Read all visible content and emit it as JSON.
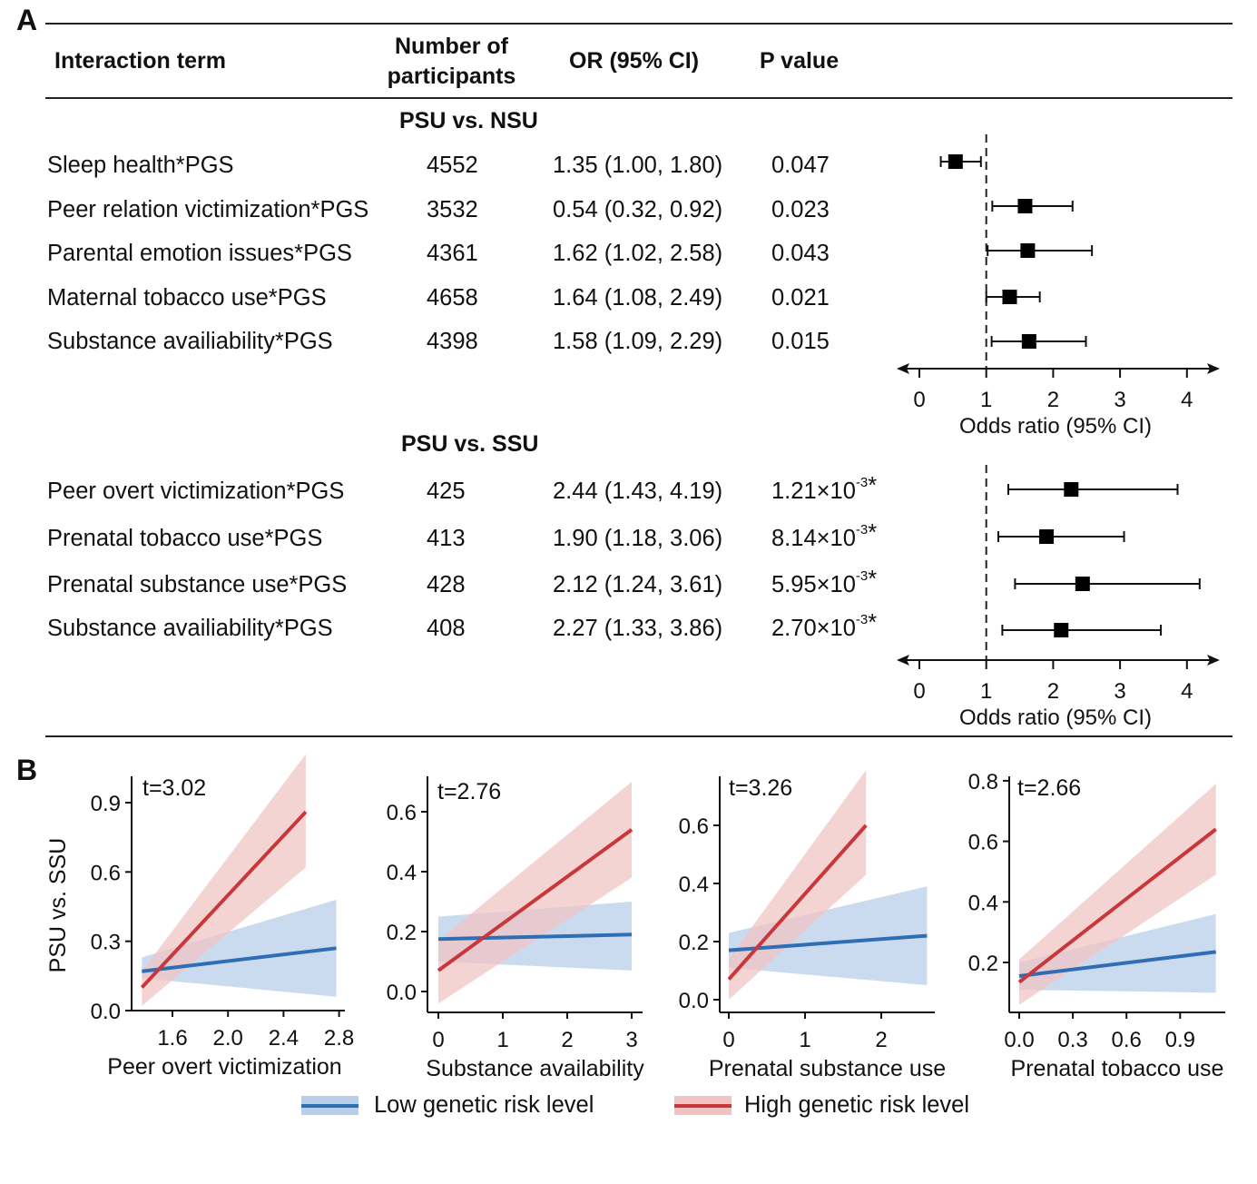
{
  "panel_a": {
    "letter": "A",
    "headers": {
      "term": "Interaction term",
      "n_line1": "Number of",
      "n_line2": "participants",
      "or": "OR (95% CI)",
      "p": "P value"
    },
    "sections": [
      {
        "title": "PSU vs. NSU",
        "rows": [
          {
            "term": "Sleep health*PGS",
            "n": "4552",
            "or_text": "1.35 (1.00, 1.80)",
            "p_base": "0.047",
            "p_exp": "",
            "p_mark": ""
          },
          {
            "term": "Peer relation victimization*PGS",
            "n": "3532",
            "or_text": "0.54 (0.32, 0.92)",
            "p_base": "0.023",
            "p_exp": "",
            "p_mark": ""
          },
          {
            "term": "Parental emotion issues*PGS",
            "n": "4361",
            "or_text": "1.62 (1.02, 2.58)",
            "p_base": "0.043",
            "p_exp": "",
            "p_mark": ""
          },
          {
            "term": "Maternal tobacco use*PGS",
            "n": "4658",
            "or_text": "1.64 (1.08, 2.49)",
            "p_base": "0.021",
            "p_exp": "",
            "p_mark": ""
          },
          {
            "term": "Substance availiability*PGS",
            "n": "4398",
            "or_text": "1.58 (1.09, 2.29)",
            "p_base": "0.015",
            "p_exp": "",
            "p_mark": ""
          }
        ]
      },
      {
        "title": "PSU vs. SSU",
        "rows": [
          {
            "term": "Peer overt victimization*PGS",
            "n": "425",
            "or_text": "2.44 (1.43, 4.19)",
            "p_base": "1.21×10",
            "p_exp": "-3",
            "p_mark": "*"
          },
          {
            "term": "Prenatal  tobacco use*PGS",
            "n": "413",
            "or_text": "1.90 (1.18, 3.06)",
            "p_base": "8.14×10",
            "p_exp": "-3",
            "p_mark": "*"
          },
          {
            "term": "Prenatal  substance use*PGS",
            "n": "428",
            "or_text": "2.12 (1.24, 3.61)",
            "p_base": "5.95×10",
            "p_exp": "-3",
            "p_mark": "*"
          },
          {
            "term": "Substance availiability*PGS",
            "n": "408",
            "or_text": "2.27 (1.33, 3.86)",
            "p_base": "2.70×10",
            "p_exp": "-3",
            "p_mark": "*"
          }
        ]
      }
    ]
  },
  "panel_b": {
    "letter": "B"
  },
  "chart_data": [
    {
      "type": "forest",
      "title": "PSU vs. NSU",
      "xlabel": "Odds ratio (95% CI)",
      "xticks": [
        "0",
        "1",
        "2",
        "3",
        "4"
      ],
      "xlim": [
        0,
        4.45
      ],
      "reference_line": 1,
      "points": [
        {
          "or": 0.54,
          "lo": 0.32,
          "hi": 0.92
        },
        {
          "or": 1.58,
          "lo": 1.09,
          "hi": 2.29
        },
        {
          "or": 1.62,
          "lo": 1.02,
          "hi": 2.58
        },
        {
          "or": 1.35,
          "lo": 1.0,
          "hi": 1.8
        },
        {
          "or": 1.64,
          "lo": 1.08,
          "hi": 2.49
        }
      ]
    },
    {
      "type": "forest",
      "title": "PSU vs. SSU",
      "xlabel": "Odds ratio (95% CI)",
      "xticks": [
        "0",
        "1",
        "2",
        "3",
        "4"
      ],
      "xlim": [
        0,
        4.45
      ],
      "reference_line": 1,
      "points": [
        {
          "or": 2.27,
          "lo": 1.33,
          "hi": 3.86
        },
        {
          "or": 1.9,
          "lo": 1.18,
          "hi": 3.06
        },
        {
          "or": 2.44,
          "lo": 1.43,
          "hi": 4.19
        },
        {
          "or": 2.12,
          "lo": 1.24,
          "hi": 3.61
        }
      ]
    },
    {
      "type": "line",
      "annotation": "t=3.02",
      "xlabel": "Peer overt victimization",
      "ylabel": "PSU vs. SSU",
      "xticks": [
        1.6,
        2.0,
        2.4,
        2.8
      ],
      "xtick_labels": [
        "1.6",
        "2.0",
        "2.4",
        "2.8"
      ],
      "yticks": [
        0.0,
        0.3,
        0.6,
        0.9
      ],
      "ytick_labels": [
        "0.0",
        "0.3",
        "0.6",
        "0.9"
      ],
      "xlim": [
        1.32,
        2.82
      ],
      "ylim": [
        0.0,
        1.13
      ],
      "series": [
        {
          "name": "Low genetic risk level",
          "x": [
            1.38,
            2.78
          ],
          "y": [
            0.17,
            0.27
          ],
          "lower": [
            0.14,
            0.06
          ],
          "upper": [
            0.23,
            0.48
          ]
        },
        {
          "name": "High genetic risk level",
          "x": [
            1.38,
            2.56
          ],
          "y": [
            0.1,
            0.86
          ],
          "lower": [
            0.02,
            0.62
          ],
          "upper": [
            0.17,
            1.11
          ]
        }
      ]
    },
    {
      "type": "line",
      "annotation": "t=2.76",
      "xlabel": "Substance availability",
      "ylabel": "",
      "xticks": [
        0,
        1,
        2,
        3
      ],
      "xtick_labels": [
        "0",
        "1",
        "2",
        "3"
      ],
      "yticks": [
        0.0,
        0.2,
        0.4,
        0.6
      ],
      "ytick_labels": [
        "0.0",
        "0.2",
        "0.4",
        "0.6"
      ],
      "xlim": [
        -0.15,
        3.2
      ],
      "ylim": [
        -0.07,
        0.72
      ],
      "series": [
        {
          "name": "Low genetic risk level",
          "x": [
            0,
            3
          ],
          "y": [
            0.175,
            0.19
          ],
          "lower": [
            0.1,
            0.07
          ],
          "upper": [
            0.25,
            0.3
          ]
        },
        {
          "name": "High genetic risk level",
          "x": [
            0,
            3
          ],
          "y": [
            0.07,
            0.54
          ],
          "lower": [
            -0.04,
            0.38
          ],
          "upper": [
            0.17,
            0.7
          ]
        }
      ]
    },
    {
      "type": "line",
      "annotation": "t=3.26",
      "xlabel": "Prenatal substance use",
      "ylabel": "",
      "xticks": [
        0,
        1,
        2
      ],
      "xtick_labels": [
        "0",
        "1",
        "2"
      ],
      "yticks": [
        0.0,
        0.2,
        0.4,
        0.6
      ],
      "ytick_labels": [
        "0.0",
        "0.2",
        "0.4",
        "0.6"
      ],
      "xlim": [
        -0.12,
        2.68
      ],
      "ylim": [
        -0.04,
        0.77
      ],
      "series": [
        {
          "name": "Low genetic risk level",
          "x": [
            0,
            2.6
          ],
          "y": [
            0.17,
            0.22
          ],
          "lower": [
            0.11,
            0.05
          ],
          "upper": [
            0.23,
            0.39
          ]
        },
        {
          "name": "High genetic risk level",
          "x": [
            0,
            1.8
          ],
          "y": [
            0.07,
            0.6
          ],
          "lower": [
            0.0,
            0.43
          ],
          "upper": [
            0.14,
            0.79
          ]
        }
      ]
    },
    {
      "type": "line",
      "annotation": "t=2.66",
      "xlabel": "Prenatal tobacco use",
      "ylabel": "",
      "xticks": [
        0.0,
        0.3,
        0.6,
        0.9
      ],
      "xtick_labels": [
        "0.0",
        "0.3",
        "0.6",
        "0.9"
      ],
      "yticks": [
        0.2,
        0.4,
        0.6,
        0.8
      ],
      "ytick_labels": [
        "0.2",
        "0.4",
        "0.6",
        "0.8"
      ],
      "xlim": [
        -0.05,
        1.15
      ],
      "ylim": [
        0.035,
        0.8
      ],
      "series": [
        {
          "name": "Low genetic risk level",
          "x": [
            0,
            1.1
          ],
          "y": [
            0.155,
            0.235
          ],
          "lower": [
            0.11,
            0.1
          ],
          "upper": [
            0.2,
            0.36
          ]
        },
        {
          "name": "High genetic risk level",
          "x": [
            0,
            1.1
          ],
          "y": [
            0.135,
            0.64
          ],
          "lower": [
            0.06,
            0.49
          ],
          "upper": [
            0.21,
            0.79
          ]
        }
      ]
    }
  ],
  "legend": {
    "items": [
      {
        "label": "Low genetic risk level",
        "color": "#2f6db5",
        "fill": "#b9cfe9"
      },
      {
        "label": "High genetic risk level",
        "color": "#c8383a",
        "fill": "#f0c4c4"
      }
    ]
  }
}
